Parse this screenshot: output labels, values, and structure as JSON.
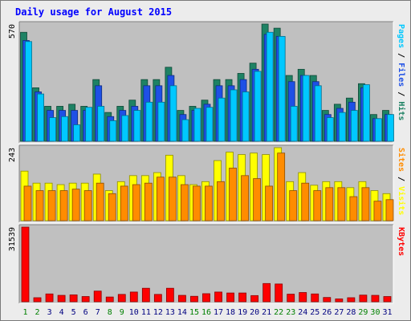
{
  "chart_data": {
    "type": "bar",
    "title": "Daily usage for August 2015",
    "days": [
      "1",
      "2",
      "3",
      "4",
      "5",
      "6",
      "7",
      "8",
      "9",
      "10",
      "11",
      "12",
      "13",
      "14",
      "15",
      "16",
      "17",
      "18",
      "19",
      "20",
      "21",
      "22",
      "23",
      "24",
      "25",
      "26",
      "27",
      "28",
      "29",
      "30",
      "31"
    ],
    "weekend_days": [
      "1",
      "2",
      "8",
      "9",
      "15",
      "16",
      "22",
      "23",
      "29",
      "30"
    ],
    "panels": [
      {
        "max_label": "570",
        "ymax": 570,
        "right_label_parts": [
          {
            "text": "Pages",
            "color": "#00c8ff"
          },
          {
            "text": " / ",
            "color": "#000000"
          },
          {
            "text": "Files",
            "color": "#1e50e6"
          },
          {
            "text": " / ",
            "color": "#000000"
          },
          {
            "text": "Hits",
            "color": "#1e8264"
          }
        ],
        "series": [
          {
            "name": "Hits",
            "color": "#1e8264",
            "values": [
              530,
              260,
              170,
              170,
              180,
              170,
              300,
              140,
              170,
              200,
              300,
              300,
              360,
              150,
              170,
              200,
              300,
              300,
              330,
              380,
              570,
              550,
              320,
              350,
              320,
              150,
              180,
              210,
              280,
              130,
              150
            ]
          },
          {
            "name": "Files",
            "color": "#1e50e6",
            "values": [
              490,
              240,
              150,
              150,
              150,
              150,
              270,
              120,
              150,
              170,
              270,
              270,
              320,
              130,
              150,
              180,
              270,
              270,
              300,
              350,
              520,
              510,
              290,
              320,
              290,
              130,
              160,
              190,
              260,
              110,
              130
            ]
          },
          {
            "name": "Pages",
            "color": "#00c8ff",
            "values": [
              485,
              230,
              115,
              120,
              80,
              165,
              170,
              100,
              125,
              150,
              190,
              190,
              270,
              105,
              160,
              165,
              210,
              250,
              240,
              340,
              530,
              510,
              170,
              320,
              270,
              115,
              140,
              150,
              275,
              110,
              130
            ]
          }
        ]
      },
      {
        "max_label": "243",
        "ymax": 243,
        "right_label_parts": [
          {
            "text": "Sites",
            "color": "#ff8c00"
          },
          {
            "text": " / ",
            "color": "#000000"
          },
          {
            "text": "Visits",
            "color": "#ffff00"
          }
        ],
        "series": [
          {
            "name": "Visits",
            "color": "#ffff00",
            "values": [
              165,
              125,
              125,
              120,
              125,
              125,
              155,
              100,
              130,
              150,
              150,
              160,
              218,
              150,
              120,
              130,
              200,
              228,
              220,
              225,
              220,
              243,
              130,
              160,
              118,
              130,
              130,
              110,
              130,
              100,
              90
            ]
          },
          {
            "name": "Sites",
            "color": "#ff8c00",
            "values": [
              115,
              100,
              100,
              100,
              105,
              100,
              125,
              90,
              115,
              120,
              125,
              145,
              145,
              120,
              115,
              115,
              130,
              175,
              150,
              140,
              115,
              225,
              100,
              125,
              100,
              110,
              110,
              80,
              110,
              65,
              70
            ]
          }
        ]
      },
      {
        "max_label": "31539",
        "ymax": 31539,
        "right_label_parts": [
          {
            "text": "KBytes",
            "color": "#ff0000"
          }
        ],
        "series": [
          {
            "name": "KBytes",
            "color": "#ff0000",
            "values": [
              31539,
              1700,
              3300,
              2700,
              2900,
              2200,
              4500,
              2000,
              3100,
              4100,
              5700,
              3100,
              5700,
              2700,
              2300,
              3400,
              4100,
              3700,
              3700,
              2600,
              7700,
              7500,
              3200,
              3900,
              3300,
              1800,
              1200,
              1700,
              2800,
              2700,
              2200
            ]
          }
        ]
      }
    ],
    "colors": {
      "frame_bg": "#ececec",
      "panel_bg": "#c0c0c0",
      "title": "#0000ff",
      "weekday_tick": "#000080",
      "weekend_tick": "#008000"
    }
  }
}
